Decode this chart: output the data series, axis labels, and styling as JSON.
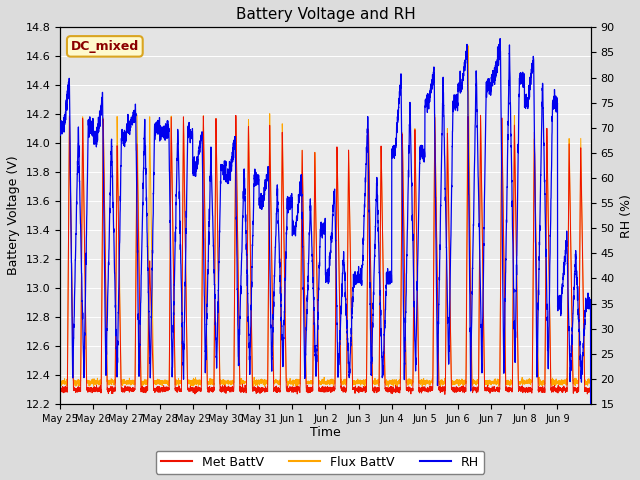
{
  "title": "Battery Voltage and RH",
  "xlabel": "Time",
  "ylabel_left": "Battery Voltage (V)",
  "ylabel_right": "RH (%)",
  "annotation": "DC_mixed",
  "annotation_color": "#8B0000",
  "annotation_bg": "#FFFACD",
  "annotation_border": "#DAA520",
  "left_ylim": [
    12.2,
    14.8
  ],
  "right_ylim": [
    15,
    90
  ],
  "left_yticks": [
    12.2,
    12.4,
    12.6,
    12.8,
    13.0,
    13.2,
    13.4,
    13.6,
    13.8,
    14.0,
    14.2,
    14.4,
    14.6,
    14.8
  ],
  "right_yticks": [
    15,
    20,
    25,
    30,
    35,
    40,
    45,
    50,
    55,
    60,
    65,
    70,
    75,
    80,
    85,
    90
  ],
  "met_battv_color": "#EE1100",
  "flux_battv_color": "#FFA500",
  "rh_color": "#0000EE",
  "bg_color": "#DCDCDC",
  "plot_bg": "#EBEBEB",
  "grid_color": "#FFFFFF",
  "legend_labels": [
    "Met BattV",
    "Flux BattV",
    "RH"
  ],
  "x_tick_labels": [
    "May 25",
    "May 26",
    "May 27",
    "May 28",
    "May 29",
    "May 30",
    "May 31",
    "Jun 1",
    "Jun 2",
    "Jun 3",
    "Jun 4",
    "Jun 5",
    "Jun 6",
    "Jun 7",
    "Jun 8",
    "Jun 9"
  ],
  "n_days": 16,
  "figsize": [
    6.4,
    4.8
  ],
  "dpi": 100
}
